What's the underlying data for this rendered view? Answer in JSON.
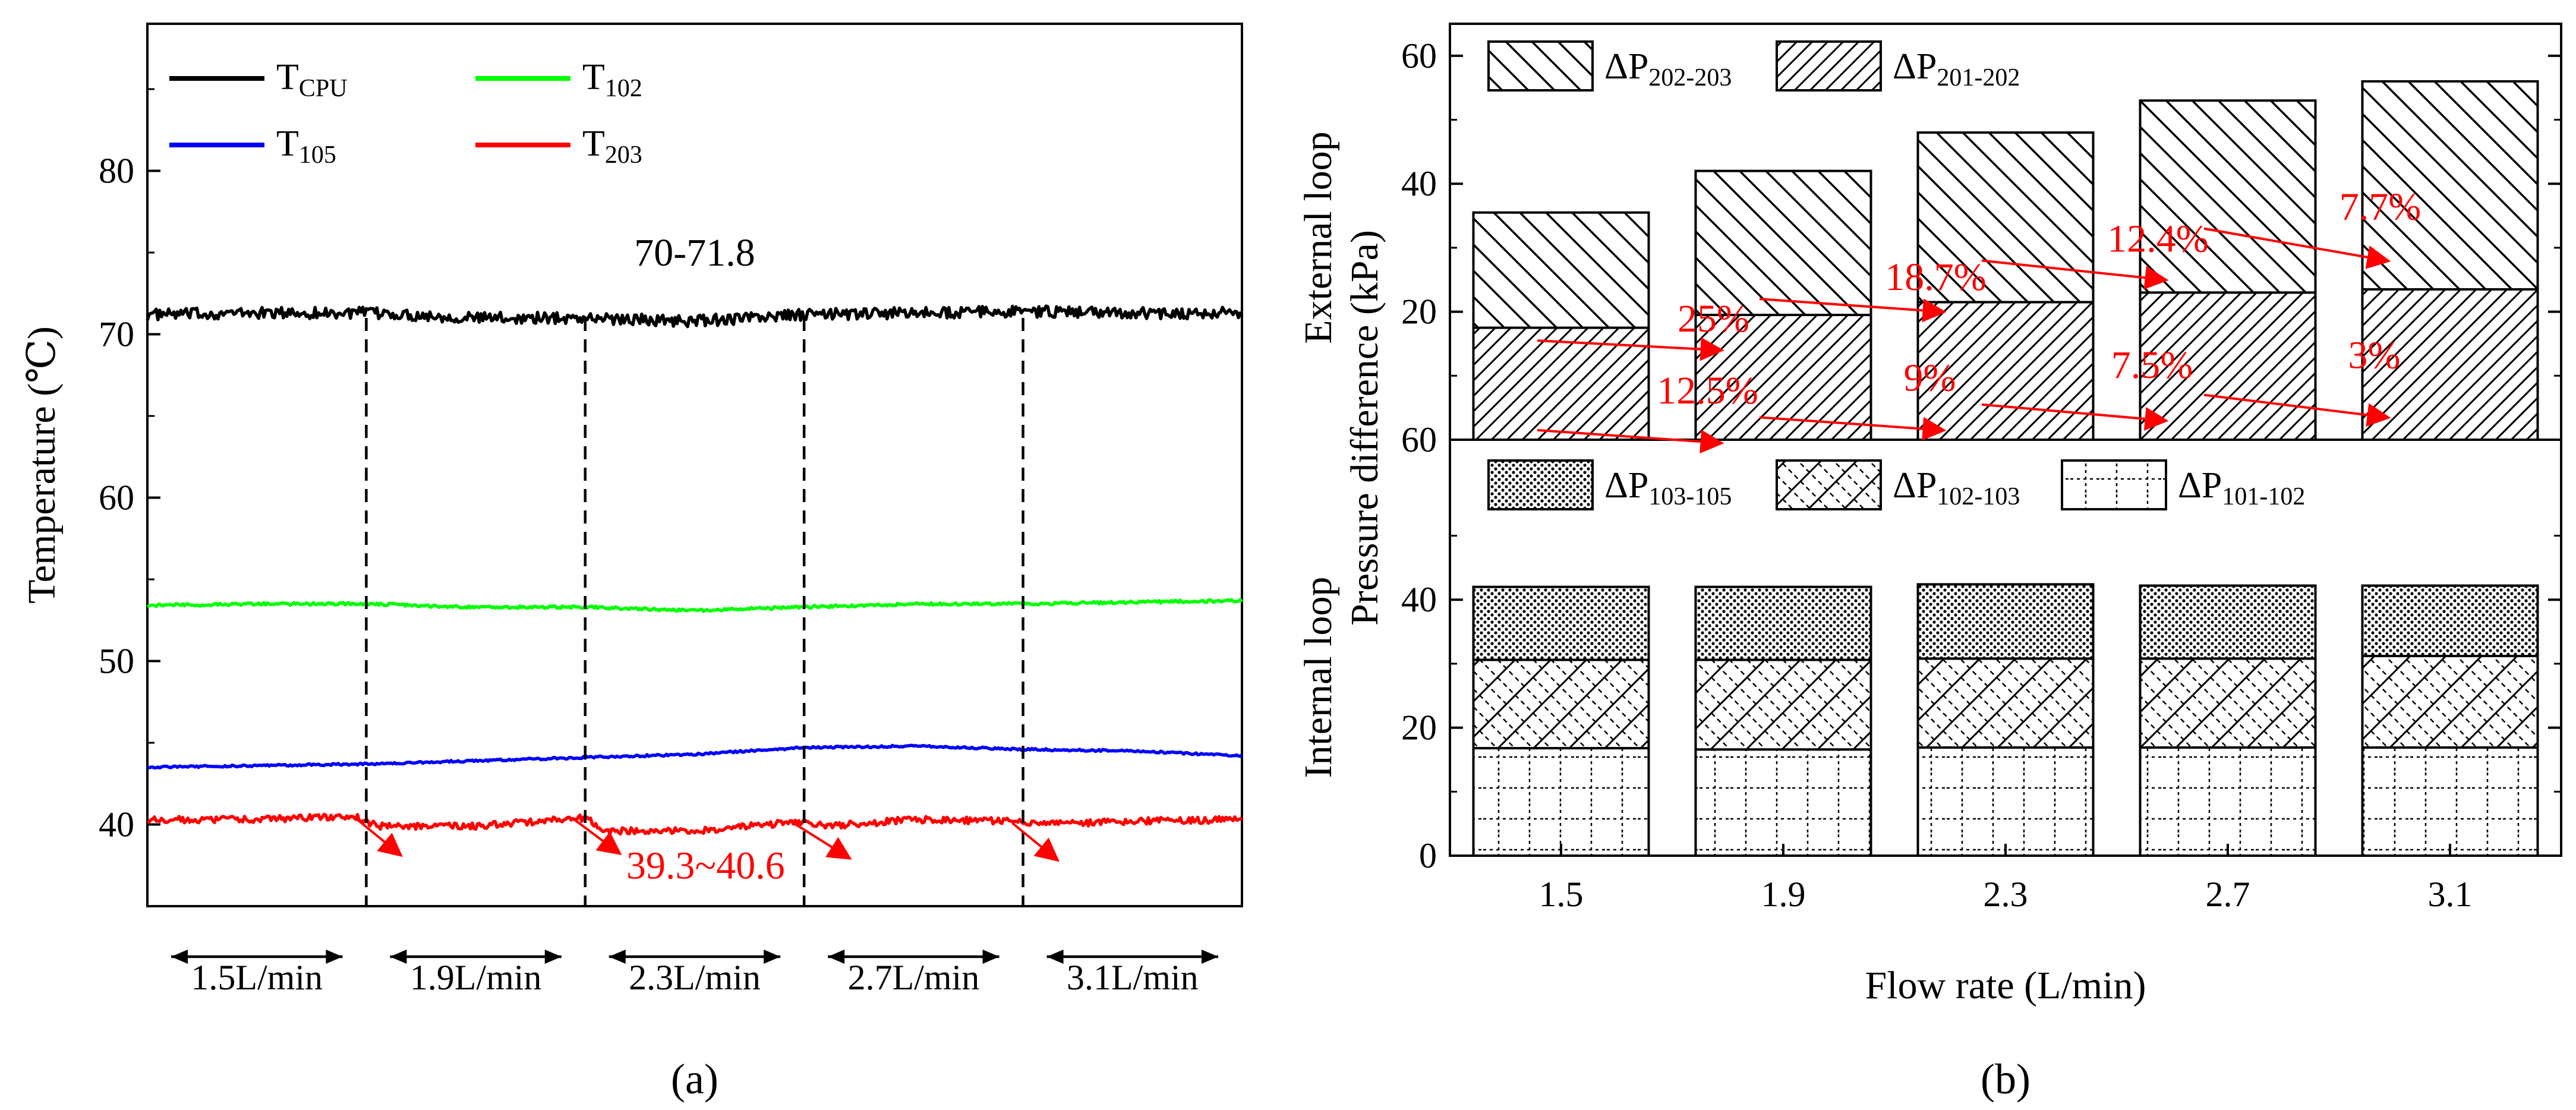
{
  "chart_data": [
    {
      "id": "a",
      "type": "line",
      "caption": "(a)",
      "ylabel": "Temperature (℃)",
      "ylim": [
        35,
        89
      ],
      "yticks": [
        40,
        50,
        60,
        70,
        80
      ],
      "xlim": [
        0,
        5
      ],
      "series": [
        {
          "name": "T",
          "sub": "CPU",
          "color": "#000000",
          "base": 71.3,
          "noise": 0.35,
          "x": [
            0,
            0.5,
            1.0,
            1.5,
            2.0,
            2.5,
            3.0,
            3.5,
            4.0,
            4.5,
            5.0
          ],
          "y": [
            71.2,
            71.3,
            71.3,
            71.0,
            71.0,
            70.8,
            71.2,
            71.3,
            71.4,
            71.3,
            71.3
          ]
        },
        {
          "name": "T",
          "sub": "102",
          "color": "#00ff00",
          "base": 53.4,
          "noise": 0.08,
          "x": [
            0,
            0.5,
            1.0,
            1.5,
            2.0,
            2.5,
            3.0,
            3.5,
            4.0,
            4.5,
            5.0
          ],
          "y": [
            53.4,
            53.5,
            53.5,
            53.3,
            53.3,
            53.1,
            53.3,
            53.5,
            53.5,
            53.6,
            53.7
          ]
        },
        {
          "name": "T",
          "sub": "105",
          "color": "#0000ff",
          "base": 44.0,
          "noise": 0.06,
          "x": [
            0,
            0.5,
            1.0,
            1.5,
            2.0,
            2.5,
            3.0,
            3.5,
            4.0,
            4.5,
            5.0
          ],
          "y": [
            43.5,
            43.6,
            43.7,
            43.9,
            44.1,
            44.3,
            44.7,
            44.8,
            44.6,
            44.5,
            44.2
          ]
        },
        {
          "name": "T",
          "sub": "203",
          "color": "#ff0000",
          "base": 40.1,
          "noise": 0.2,
          "x": [
            0,
            0.5,
            0.95,
            1.05,
            1.5,
            2.0,
            2.1,
            2.5,
            3.0,
            3.1,
            3.5,
            4.0,
            4.1,
            4.5,
            5.0
          ],
          "y": [
            40.3,
            40.3,
            40.5,
            39.9,
            39.9,
            40.4,
            39.6,
            39.6,
            40.2,
            39.9,
            40.3,
            40.2,
            40.0,
            40.2,
            40.3
          ]
        }
      ],
      "segments": [
        "1.5L/min",
        "1.9L/min",
        "2.3L/min",
        "2.7L/min",
        "3.1L/min"
      ],
      "annotations": [
        {
          "text": "70-71.8",
          "x": 2.5,
          "y": 74.2,
          "color": "#000000"
        },
        {
          "text": "39.3~40.6",
          "x": 2.55,
          "y": 36.7,
          "color": "#ff0000"
        }
      ],
      "arrows": [
        {
          "x1": 0.95,
          "y1": 40.4,
          "x2": 1.15,
          "y2": 38.2
        },
        {
          "x1": 1.95,
          "y1": 40.3,
          "x2": 2.15,
          "y2": 38.3
        },
        {
          "x1": 2.95,
          "y1": 40.1,
          "x2": 3.2,
          "y2": 38.0
        },
        {
          "x1": 3.95,
          "y1": 40.1,
          "x2": 4.15,
          "y2": 37.9
        }
      ]
    },
    {
      "id": "b",
      "type": "bar",
      "caption": "(b)",
      "xlabel": "Flow rate (L/min)",
      "ylabel_left": "Pressure difference (kPa)",
      "categories": [
        "1.5",
        "1.9",
        "2.3",
        "2.7",
        "3.1"
      ],
      "top_panel": {
        "ylabel": "External loop",
        "ylim": [
          0,
          65
        ],
        "yticks": [
          20,
          40,
          60
        ],
        "zero_label": "60",
        "series": [
          {
            "name": "ΔP",
            "sub": "201-202",
            "pattern": "dense",
            "values": [
              17.5,
              19.5,
              21.5,
              23.0,
              23.5
            ]
          },
          {
            "name": "ΔP",
            "sub": "202-203",
            "pattern": "sparse",
            "values": [
              18.0,
              22.5,
              26.5,
              30.0,
              32.5
            ]
          }
        ],
        "legend_order": [
          1,
          0
        ],
        "upper_labels": [
          "25%",
          "18.7%",
          "12.4%",
          "7.7%"
        ],
        "lower_labels": [
          "12.5%",
          "9%",
          "7.5%",
          "3%"
        ]
      },
      "bottom_panel": {
        "ylabel": "Internal loop",
        "ylim": [
          0,
          65
        ],
        "yticks": [
          0,
          20,
          40
        ],
        "series": [
          {
            "name": "ΔP",
            "sub": "101-102",
            "pattern": "grid",
            "values": [
              16.8,
              16.6,
              16.9,
              16.9,
              16.9
            ]
          },
          {
            "name": "ΔP",
            "sub": "102-103",
            "pattern": "diamond",
            "values": [
              13.8,
              14.0,
              13.9,
              13.9,
              14.3
            ]
          },
          {
            "name": "ΔP",
            "sub": "103-105",
            "pattern": "dots",
            "values": [
              11.4,
              11.4,
              11.6,
              11.4,
              11.0
            ]
          }
        ],
        "legend_order": [
          2,
          1,
          0
        ]
      }
    }
  ]
}
